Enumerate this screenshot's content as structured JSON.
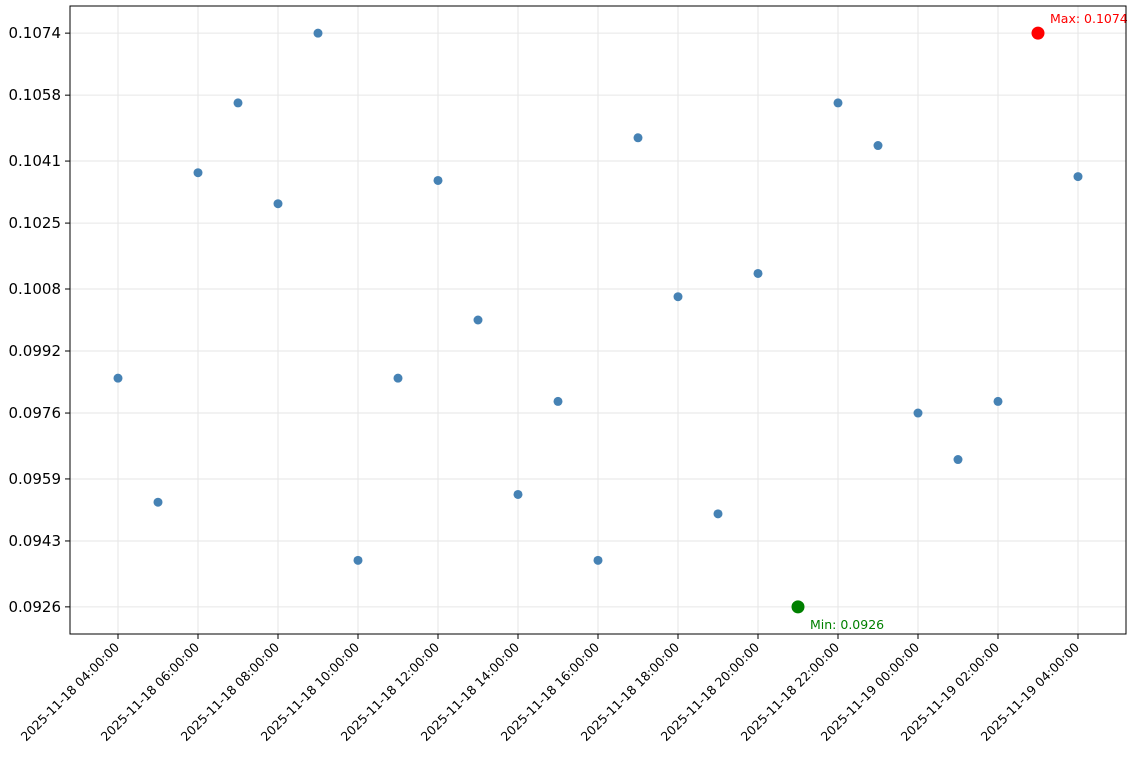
{
  "chart_data": {
    "type": "scatter",
    "title": "",
    "xlabel": "",
    "ylabel": "",
    "x_ticks": [
      "2025-11-18 04:00:00",
      "2025-11-18 06:00:00",
      "2025-11-18 08:00:00",
      "2025-11-18 10:00:00",
      "2025-11-18 12:00:00",
      "2025-11-18 14:00:00",
      "2025-11-18 16:00:00",
      "2025-11-18 18:00:00",
      "2025-11-18 20:00:00",
      "2025-11-18 22:00:00",
      "2025-11-19 00:00:00",
      "2025-11-19 02:00:00",
      "2025-11-19 04:00:00"
    ],
    "y_ticks": [
      "0.0926",
      "0.0943",
      "0.0959",
      "0.0976",
      "0.0992",
      "0.1008",
      "0.1025",
      "0.1041",
      "0.1058",
      "0.1074"
    ],
    "y_tick_values": [
      0.0926,
      0.0943,
      0.0959,
      0.0976,
      0.0992,
      0.1008,
      0.1025,
      0.1041,
      0.1058,
      0.1074
    ],
    "xlim": [
      "2025-11-18 02:48:00",
      "2025-11-19 05:12:00"
    ],
    "ylim": [
      0.0919,
      0.1081
    ],
    "grid": true,
    "series": [
      {
        "color": "#4682b4",
        "points": [
          {
            "x": "2025-11-18 04:00:00",
            "y": 0.0985
          },
          {
            "x": "2025-11-18 05:00:00",
            "y": 0.0953
          },
          {
            "x": "2025-11-18 06:00:00",
            "y": 0.1038
          },
          {
            "x": "2025-11-18 07:00:00",
            "y": 0.1056
          },
          {
            "x": "2025-11-18 08:00:00",
            "y": 0.103
          },
          {
            "x": "2025-11-18 09:00:00",
            "y": 0.1074
          },
          {
            "x": "2025-11-18 10:00:00",
            "y": 0.0938
          },
          {
            "x": "2025-11-18 11:00:00",
            "y": 0.0985
          },
          {
            "x": "2025-11-18 12:00:00",
            "y": 0.1036
          },
          {
            "x": "2025-11-18 13:00:00",
            "y": 0.1
          },
          {
            "x": "2025-11-18 14:00:00",
            "y": 0.0955
          },
          {
            "x": "2025-11-18 15:00:00",
            "y": 0.0979
          },
          {
            "x": "2025-11-18 16:00:00",
            "y": 0.0938
          },
          {
            "x": "2025-11-18 17:00:00",
            "y": 0.1047
          },
          {
            "x": "2025-11-18 18:00:00",
            "y": 0.1006
          },
          {
            "x": "2025-11-18 19:00:00",
            "y": 0.095
          },
          {
            "x": "2025-11-18 20:00:00",
            "y": 0.1012
          },
          {
            "x": "2025-11-18 22:00:00",
            "y": 0.1056
          },
          {
            "x": "2025-11-18 23:00:00",
            "y": 0.1045
          },
          {
            "x": "2025-11-19 00:00:00",
            "y": 0.0976
          },
          {
            "x": "2025-11-19 01:00:00",
            "y": 0.0964
          },
          {
            "x": "2025-11-19 02:00:00",
            "y": 0.0979
          },
          {
            "x": "2025-11-19 04:00:00",
            "y": 0.1037
          }
        ]
      }
    ],
    "highlights": [
      {
        "x": "2025-11-19 03:00:00",
        "y": 0.1074,
        "color": "#ff0000",
        "label": "Max: 0.1074",
        "label_position": "upper-right"
      },
      {
        "x": "2025-11-18 21:00:00",
        "y": 0.0926,
        "color": "#008000",
        "label": "Min: 0.0926",
        "label_position": "lower-right"
      }
    ]
  }
}
